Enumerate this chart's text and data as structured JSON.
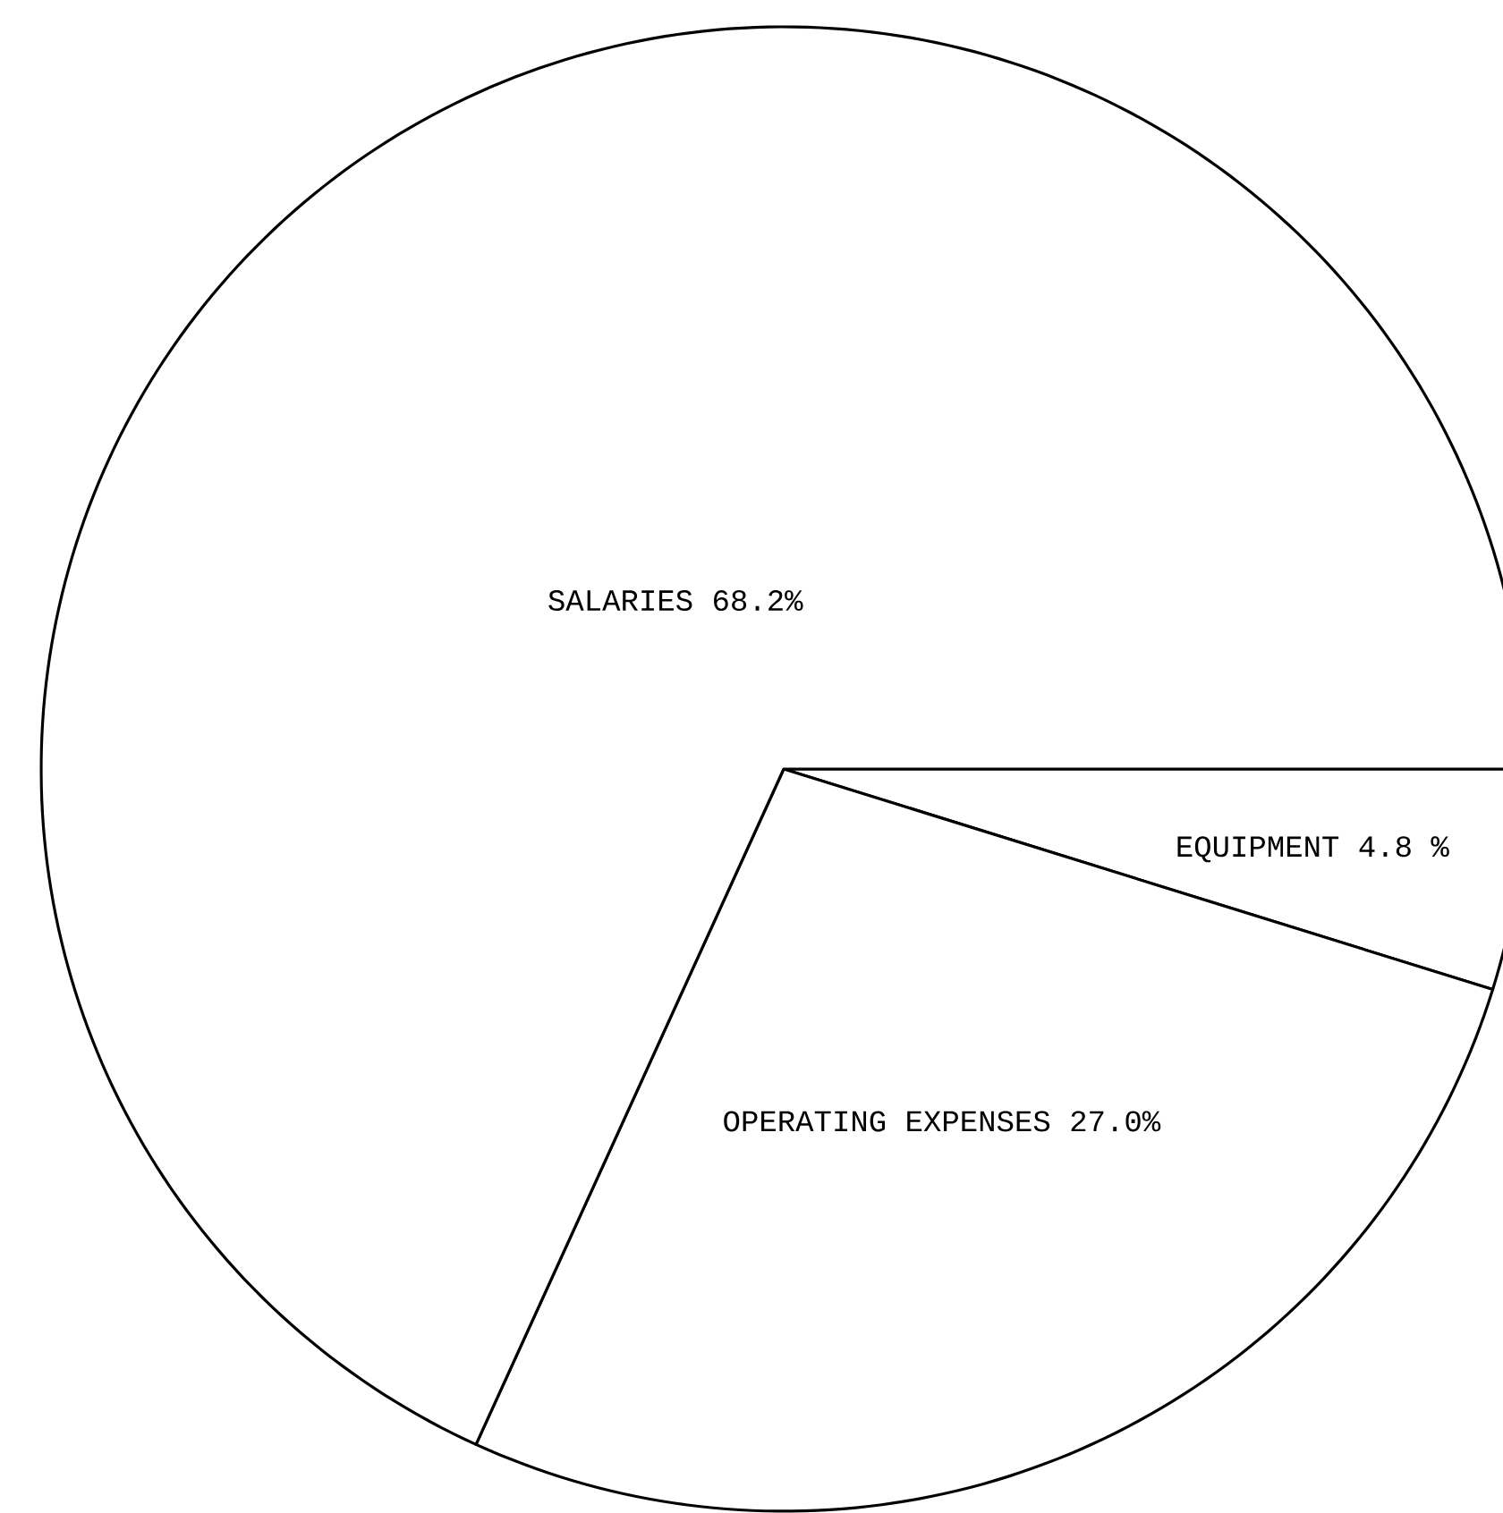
{
  "chart_data": {
    "type": "pie",
    "categories": [
      "EQUIPMENT",
      "OPERATING EXPENSES",
      "SALARIES"
    ],
    "values": [
      4.8,
      27.0,
      68.2
    ],
    "value_labels": [
      "4.8 %",
      "27.0%",
      "68.2%"
    ],
    "colors": [
      "#ffffff",
      "#ffffff",
      "#ffffff"
    ]
  }
}
